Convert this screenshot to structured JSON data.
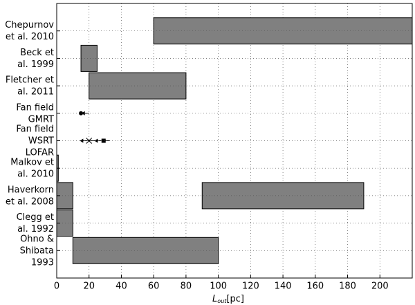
{
  "chart_data": {
    "type": "range-bar",
    "categories": [
      "Chepurnov\net al. 2010",
      "Beck et\nal. 1999",
      "Fletcher et\nal. 2011",
      "Fan field\nGMRT",
      "Fan field\nWSRT\nLOFAR",
      "Malkov et\nal. 2010",
      "Haverkorn\net al. 2008",
      "Clegg et\nal. 1992",
      "Ohno &\nShibata\n1993"
    ],
    "ranges": [
      [
        [
          60,
          220
        ]
      ],
      [
        [
          15,
          25
        ]
      ],
      [
        [
          20,
          80
        ]
      ],
      [],
      [],
      [
        [
          0,
          1
        ]
      ],
      [
        [
          0,
          10
        ],
        [
          90,
          190
        ]
      ],
      [
        [
          0,
          10
        ]
      ],
      [
        [
          10,
          100
        ]
      ]
    ],
    "lines": [
      [],
      [],
      [],
      [
        [
          14,
          20
        ]
      ],
      [
        [
          15,
          33
        ]
      ],
      [],
      [],
      [],
      []
    ],
    "markers": [
      [],
      [],
      [],
      [
        {
          "x": 15,
          "shape": "circle"
        },
        {
          "x": 17,
          "shape": "arrow-left"
        }
      ],
      [
        {
          "x": 16,
          "shape": "arrow-left"
        },
        {
          "x": 20,
          "shape": "cross"
        },
        {
          "x": 25,
          "shape": "arrow-left"
        },
        {
          "x": 29,
          "shape": "square"
        }
      ],
      [],
      [],
      [],
      []
    ],
    "color": "#808080",
    "xlim": [
      0,
      220
    ],
    "xticks": [
      0,
      20,
      40,
      60,
      80,
      100,
      120,
      140,
      160,
      180,
      200
    ],
    "xlabel": {
      "symbol": "L",
      "subscript": "out",
      "unit": "[pc]"
    },
    "grid": true
  }
}
